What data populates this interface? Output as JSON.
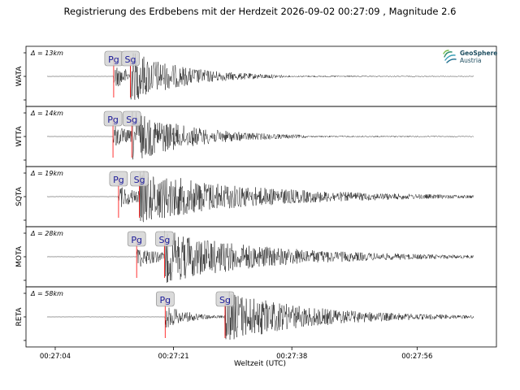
{
  "header": {
    "title": "Registrierung des Erdbebens mit der Herdzeit 2026-09-02 00:27:09 , Magnitude 2.6"
  },
  "logo": {
    "line1": "GeoSphere",
    "line2": "Austria"
  },
  "chart_data": {
    "type": "line",
    "title": "Registrierung des Erdbebens mit der Herdzeit 2026-09-02 00:27:09 , Magnitude 2.6",
    "xlabel": "Weltzeit (UTC)",
    "x_ticks": [
      "00:27:04",
      "00:27:21",
      "00:27:38",
      "00:27:56"
    ],
    "x_tick_seconds": [
      4,
      21,
      38,
      56
    ],
    "x_range_seconds": [
      -0.2,
      67.4
    ],
    "grid": false,
    "legend": "none",
    "trace_color": "#000000",
    "pick_color": "#ff0000",
    "stations": [
      {
        "name": "WATA",
        "distance": "Δ = 13km",
        "pg_label": "Pg",
        "sg_label": "Sg",
        "pg_s": 12.4,
        "sg_s": 14.8,
        "duration_s": 22,
        "peak": 1.0
      },
      {
        "name": "WTTA",
        "distance": "Δ = 14km",
        "pg_label": "Pg",
        "sg_label": "Sg",
        "pg_s": 12.3,
        "sg_s": 15.0,
        "duration_s": 25,
        "peak": 1.0
      },
      {
        "name": "SQTA",
        "distance": "Δ = 19km",
        "pg_label": "Pg",
        "sg_label": "Sg",
        "pg_s": 13.1,
        "sg_s": 16.1,
        "duration_s": 50,
        "peak": 1.0
      },
      {
        "name": "MOTA",
        "distance": "Δ = 28km",
        "pg_label": "Pg",
        "sg_label": "Sg",
        "pg_s": 15.7,
        "sg_s": 19.7,
        "duration_s": 55,
        "peak": 1.0
      },
      {
        "name": "RETA",
        "distance": "Δ = 58km",
        "pg_label": "Pg",
        "sg_label": "Sg",
        "pg_s": 19.8,
        "sg_s": 28.4,
        "duration_s": 45,
        "peak": 1.0
      }
    ]
  }
}
